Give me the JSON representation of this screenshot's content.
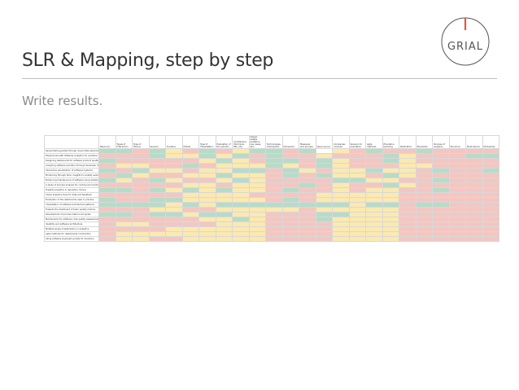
{
  "slide": {
    "title": "SLR & Mapping, step by step",
    "subtitle": "Write results."
  },
  "logo": {
    "text": "GRIAL",
    "accent_color": "#e05a3a",
    "outline_color": "#555555"
  },
  "colors": {
    "green": "#b6dcc8",
    "red": "#f4c6c1",
    "yellow": "#fbe9b0",
    "text": "#333333",
    "subtitle": "#8c8c8c"
  },
  "spreadsheet": {
    "columns": [
      "Resource",
      "Types of Interaction",
      "Type of Device",
      "Sensors",
      "Duration",
      "Mobile",
      "Type of Visualization",
      "Evaluation of the solution",
      "Architecture (Technical, SPs, etc)",
      "Design details (patterns, use cases, etc)",
      "Technologies, frameworks",
      "Dimension",
      "Measures and process",
      "Open-source",
      "Companies involved",
      "Sensors for evaluation",
      "Agile methods",
      "Education, teaching",
      "Publication",
      "Standards",
      "Purpose of analytics",
      "Structure",
      "Multi-device",
      "Modularity"
    ],
    "rows": [
      {
        "label": "Sensemaking guided through visual data exploration",
        "cells": "ggrgyrgryggrgwyrgrrgrrrr"
      },
      {
        "label": "Experiences with Software Analytics for evolution",
        "cells": "rrrgyygygrgrryrrrgyrrrgg"
      },
      {
        "label": "Designing dashboards for software product quality",
        "cells": "grrrrrygyrggrgyrrgyrrrrr"
      },
      {
        "label": "Analyzing software evolution through developer data",
        "cells": "ryyrrgryyygyrgyrrryyrrrr"
      },
      {
        "label": "Interactive visualization of software systems",
        "cells": "grgyyryyggrgyryygyyrgrrg"
      },
      {
        "label": "Monitoring through time: insights for quality evaluation",
        "cells": "rgyrryygyyrgrgyyrgyrrrrr"
      },
      {
        "label": "Enhancing maintenance of software using dashboards",
        "cells": "gyrgyrrygyrrrrggyyrrgrrr"
      },
      {
        "label": "A study of process analysis for continuous monitoring",
        "cells": "rrrrryyryyrrgryrrgyrrrrr"
      },
      {
        "label": "Towards analytics in repository mining",
        "cells": "ggrgygygyyrgrryryyrrgrrr"
      },
      {
        "label": "Visual analytics tools for data and feedback",
        "cells": "rrrrryyyyrrrryyyyyrrrrrr"
      },
      {
        "label": "Evaluation of the dashboards used in practice",
        "cells": "grrggyyyyyrgryyyyyrrrrrr"
      },
      {
        "label": "Visualization of software architecture patterns",
        "cells": "ggggygyggggggggyggrggrrr"
      },
      {
        "label": "Towards the dashboard of team quality metrics",
        "cells": "rrryyrryyyyyryyyyyrrrrrr"
      },
      {
        "label": "Development of process metrics and goals",
        "cells": "ggrggyggyyrrrggyyyrrrrrr"
      },
      {
        "label": "Mechanisms for software code quality assessment",
        "cells": "rrrrrryygyrrrgyyyyrrrrrr"
      },
      {
        "label": "Usability and software architecture",
        "cells": "ryyrrrryyyrrrryyyyrrrrrr"
      },
      {
        "label": "Multiple levels of abstraction in analytics",
        "cells": "rrrryyyyyyrrrryyyyrrrrrr"
      },
      {
        "label": "Agile methods for dashboards construction",
        "cells": "ryyyyyyyyyrrrryyyyrrrrrr"
      },
      {
        "label": "Using software engineering data for decisions",
        "cells": "ryyrryyyyyrrrryyyyrrrrrr"
      }
    ]
  }
}
